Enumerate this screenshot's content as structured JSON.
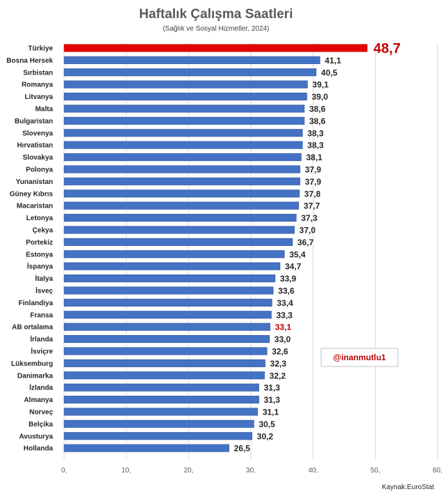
{
  "chart_data": {
    "type": "bar",
    "orientation": "horizontal",
    "title": "Haftalık Çalışma Saatleri",
    "subtitle": "(Sağlık ve Sosyal Hizmetler, 2024)",
    "categories": [
      "Türkiye",
      "Bosna Hersek",
      "Sırbistan",
      "Romanya",
      "Litvanya",
      "Malta",
      "Bulgaristan",
      "Slovenya",
      "Hırvatistan",
      "Slovakya",
      "Polonya",
      "Yunanistan",
      "Güney Kıbrıs",
      "Macaristan",
      "Letonya",
      "Çekya",
      "Portekiz",
      "Estonya",
      "İspanya",
      "İtalya",
      "İsveç",
      "Finlandiya",
      "Fransa",
      "AB ortalama",
      "İrlanda",
      "İsviçre",
      "Lüksemburg",
      "Danimarka",
      "İzlanda",
      "Almanya",
      "Norveç",
      "Belçika",
      "Avusturya",
      "Hollanda"
    ],
    "values": [
      48.7,
      41.1,
      40.5,
      39.1,
      39.0,
      38.6,
      38.6,
      38.3,
      38.3,
      38.1,
      37.9,
      37.9,
      37.8,
      37.7,
      37.3,
      37.0,
      36.7,
      35.4,
      34.7,
      33.9,
      33.6,
      33.4,
      33.3,
      33.1,
      33.0,
      32.6,
      32.3,
      32.2,
      31.3,
      31.3,
      31.1,
      30.5,
      30.2,
      26.5
    ],
    "value_labels": [
      "48,7",
      "41,1",
      "40,5",
      "39,1",
      "39,0",
      "38,6",
      "38,6",
      "38,3",
      "38,3",
      "38,1",
      "37,9",
      "37,9",
      "37,8",
      "37,7",
      "37,3",
      "37,0",
      "36,7",
      "35,4",
      "34,7",
      "33,9",
      "33,6",
      "33,4",
      "33,3",
      "33,1",
      "33,0",
      "32,6",
      "32,3",
      "32,2",
      "31,3",
      "31,3",
      "31,1",
      "30,5",
      "30,2",
      "26,5"
    ],
    "highlight_bar_index": 0,
    "highlight_label_indices": [
      0,
      23
    ],
    "xlim": [
      0,
      60
    ],
    "x_ticks": [
      0,
      10,
      20,
      30,
      40,
      50,
      60
    ],
    "x_tick_labels": [
      "0,",
      "10,",
      "20,",
      "30,",
      "40,",
      "50,",
      "60,"
    ],
    "grid": true,
    "xlabel": "",
    "ylabel": ""
  },
  "colors": {
    "bar": "#4472c4",
    "bar_edge": "#2f5597",
    "highlight_bar": "#e00000",
    "highlight_label": "#c00000",
    "grid": "#d9d9d9"
  },
  "watermark": "@inanmutlu1",
  "source": "Kaynak:EuroStat"
}
